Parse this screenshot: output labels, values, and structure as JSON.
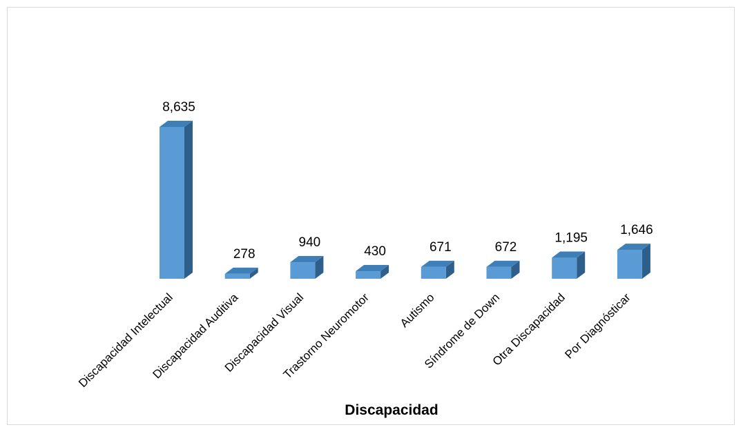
{
  "chart_data": {
    "type": "bar",
    "categories": [
      "Discapacidad Intelectual",
      "Discapacidad Auditiva",
      "Discapacidad Visual",
      "Trastorno Neuromotor",
      "Autismo",
      "Síndrome de Down",
      "Otra Discapacidad",
      "Por Diagnósticar"
    ],
    "values": [
      8635,
      278,
      940,
      430,
      671,
      672,
      1195,
      1646
    ],
    "data_labels": [
      "8,635",
      "278",
      "940",
      "430",
      "671",
      "672",
      "1,195",
      "1,646"
    ],
    "xlabel": "Discapacidad",
    "ylabel": "",
    "ylim": [
      0,
      9000
    ],
    "grid": false,
    "legend": "none",
    "style": "3d-column",
    "colors": {
      "bar_front": "#5b9bd5",
      "bar_top": "#3f7fb8",
      "bar_side": "#2e5f8a",
      "frame_border": "#d9d9d9"
    }
  }
}
